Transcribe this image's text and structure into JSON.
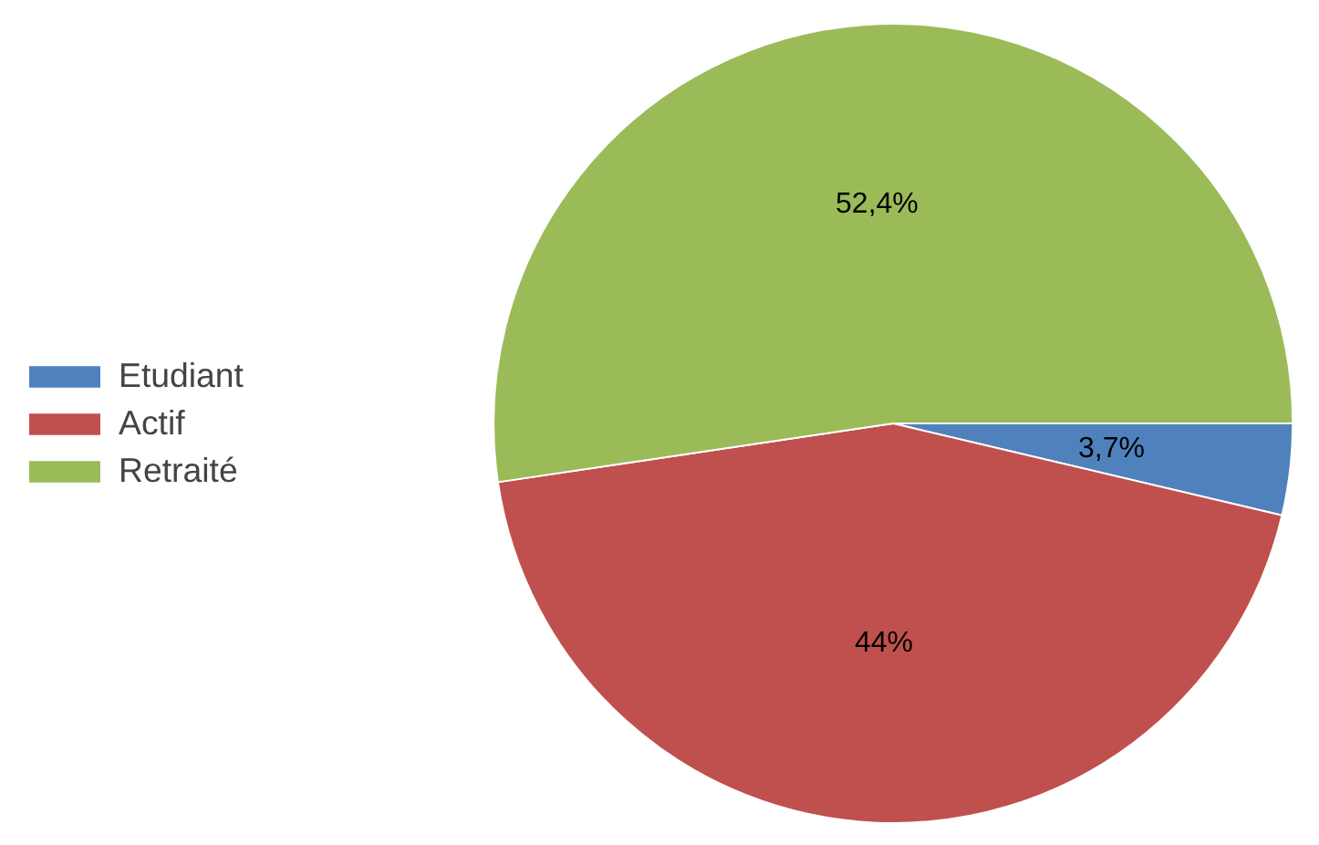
{
  "chart_data": {
    "type": "pie",
    "categories": [
      "Etudiant",
      "Actif",
      "Retraité"
    ],
    "values": [
      3.7,
      44,
      52.4
    ],
    "colors": [
      "#4f81bd",
      "#c0504d",
      "#9bbb59"
    ],
    "value_labels": [
      "3,7%",
      "44%",
      "52,4%"
    ],
    "legend": "left"
  }
}
